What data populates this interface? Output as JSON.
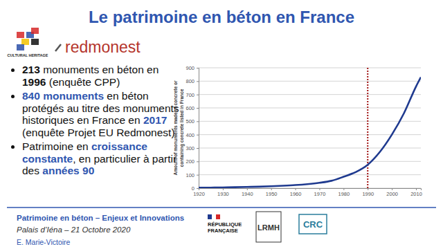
{
  "chart_data": {
    "type": "line",
    "y_label": [
      "Amount of monuments made of concrete or",
      "containing concrete listed in France"
    ],
    "x": [
      1920,
      1925,
      1930,
      1935,
      1940,
      1945,
      1950,
      1955,
      1960,
      1965,
      1970,
      1975,
      1980,
      1985,
      1990,
      1995,
      2000,
      2005,
      2010,
      2012
    ],
    "values": [
      3,
      4,
      5,
      7,
      9,
      11,
      14,
      18,
      23,
      30,
      40,
      55,
      85,
      120,
      175,
      270,
      400,
      560,
      760,
      830
    ],
    "color": "#1f3a8f",
    "xlim": [
      1920,
      2012
    ],
    "xticks": [
      1920,
      1930,
      1940,
      1950,
      1960,
      1970,
      1980,
      1990,
      2000,
      2010
    ],
    "ylim": [
      0,
      900
    ],
    "yticks": [
      0,
      100,
      200,
      300,
      400,
      500,
      600,
      700,
      800,
      900
    ],
    "grid": true,
    "reference_x": 1990
  },
  "slide": {
    "title": "Le patrimoine en béton en France",
    "logos": [
      "CULTURAL HERITAGE",
      "redmonest"
    ],
    "bullets": [
      [
        {
          "text": "213",
          "style": "bold"
        },
        {
          "text": " monuments en béton en ",
          "style": "plain"
        },
        {
          "text": "1996",
          "style": "bold"
        },
        {
          "text": " (enquête CPP)",
          "style": "plain"
        }
      ],
      [
        {
          "text": "840 monuments",
          "style": "highlight"
        },
        {
          "text": " en béton protégés au titre des monuments historiques en France en ",
          "style": "plain"
        },
        {
          "text": "2017",
          "style": "highlight"
        },
        {
          "text": " (enquête Projet EU Redmonest)",
          "style": "plain"
        }
      ],
      [
        {
          "text": "Patrimoine en ",
          "style": "plain"
        },
        {
          "text": "croissance constante",
          "style": "highlight"
        },
        {
          "text": ", en particulier à partir des ",
          "style": "plain"
        },
        {
          "text": "années 90",
          "style": "highlight"
        }
      ]
    ],
    "footer": {
      "event": "Patrimoine en béton – Enjeux et Innovations",
      "place_date": "Palais d’Iéna – 21 Octobre 2020",
      "author": "E. Marie-Victoire"
    },
    "partners": [
      [
        "RÉPUBLIQUE",
        "FRANÇAISE"
      ],
      [
        "LRMH"
      ],
      [
        "CRC"
      ]
    ]
  }
}
